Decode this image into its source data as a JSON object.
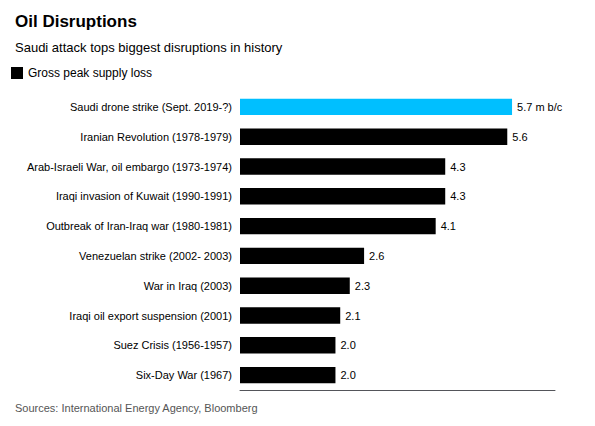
{
  "chart_data": {
    "type": "bar",
    "orientation": "horizontal",
    "title": "Oil Disruptions",
    "subtitle": "Saudi attack tops biggest disruptions in history",
    "categories": [
      "Six-Day War (1967)",
      "Suez Crisis (1956-1957)",
      "Iraqi oil export suspension (2001)",
      "War in Iraq (2003)",
      "Venezuelan strike (2002- 2003)",
      "Outbreak of Iran-Iraq war (1980-1981)",
      "Iraqi invasion of Kuwait (1990-1991)",
      "Arab-Israeli War, oil embargo (1973-1974)",
      "Iranian Revolution (1978-1979)",
      "Saudi drone strike (Sept. 2019-?)"
    ],
    "series": [
      {
        "name": "Gross peak supply loss",
        "color": "#000000",
        "colors": [
          "#000000",
          "#000000",
          "#000000",
          "#000000",
          "#000000",
          "#000000",
          "#000000",
          "#000000",
          "#000000",
          "#00bfff"
        ],
        "values": [
          2.0,
          2.0,
          2.1,
          2.3,
          2.6,
          4.1,
          4.3,
          4.3,
          5.6,
          5.7
        ],
        "value_labels": [
          "2.0",
          "2.0",
          "2.1",
          "2.3",
          "2.6",
          "4.1",
          "4.3",
          "4.3",
          "5.6",
          "5.7 m b/c"
        ]
      }
    ],
    "xlim": [
      0,
      6.6
    ],
    "data_labels": true,
    "tick_labels": "y",
    "grid": false,
    "legend": "upper left",
    "annotations": [
      "Sources: International Energy Agency, Bloomberg"
    ]
  }
}
